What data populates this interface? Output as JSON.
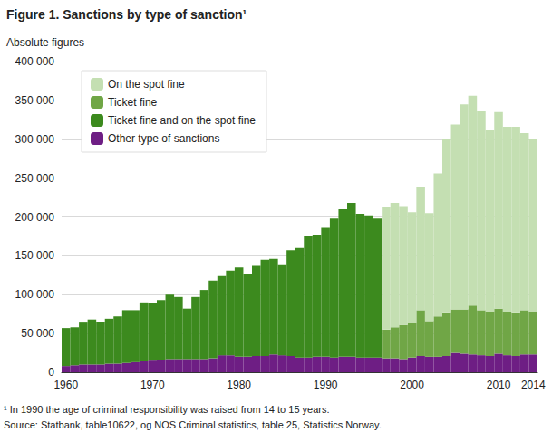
{
  "chart_data": {
    "type": "bar",
    "title": "Figure 1. Sanctions by type of sanction¹",
    "subtitle": "Absolute figures",
    "annotations": [
      "¹ In 1990 the age of criminal responsibility was raised from 14 to 15 years.",
      "Source: Statbank, table10622, og NOS Criminal statistics, table 25, Statistics Norway."
    ],
    "stacked": true,
    "grid": true,
    "legend": "top-left",
    "categories": [
      "1960",
      null,
      null,
      null,
      null,
      null,
      null,
      null,
      null,
      null,
      "1970",
      null,
      null,
      null,
      null,
      null,
      null,
      null,
      null,
      null,
      "1980",
      null,
      null,
      null,
      null,
      null,
      null,
      null,
      null,
      null,
      "1990",
      null,
      null,
      null,
      null,
      null,
      null,
      null,
      null,
      null,
      "2000",
      null,
      null,
      null,
      null,
      null,
      null,
      null,
      null,
      null,
      "2010",
      null,
      null,
      null,
      "2014"
    ],
    "ylim": [
      0,
      400000
    ],
    "yticks": [
      0,
      {
        "value": 50000,
        "label": "50 000"
      },
      {
        "value": 100000,
        "label": "100 000"
      },
      {
        "value": 150000,
        "label": "150 000"
      },
      {
        "value": 200000,
        "label": "200 000"
      },
      {
        "value": 250000,
        "label": "250 000"
      },
      {
        "value": 300000,
        "label": "300 000"
      },
      {
        "value": 350000,
        "label": "350 000"
      },
      {
        "value": 400000,
        "label": "400 000"
      }
    ],
    "series": [
      {
        "name": "On the spot fine",
        "color": "#c4dfb2",
        "values": [
          null,
          null,
          null,
          null,
          null,
          null,
          null,
          null,
          null,
          null,
          null,
          null,
          null,
          null,
          null,
          null,
          null,
          null,
          null,
          null,
          null,
          null,
          null,
          null,
          null,
          null,
          null,
          null,
          null,
          null,
          null,
          null,
          null,
          null,
          null,
          null,
          null,
          158000,
          160000,
          153000,
          143000,
          159000,
          139000,
          184000,
          224000,
          238000,
          264000,
          270000,
          257000,
          234000,
          253000,
          238000,
          240000,
          228000,
          224000
        ]
      },
      {
        "name": "Ticket fine",
        "color": "#70a646",
        "values": [
          null,
          null,
          null,
          null,
          null,
          null,
          null,
          null,
          null,
          null,
          null,
          null,
          null,
          null,
          null,
          null,
          null,
          null,
          null,
          null,
          null,
          null,
          null,
          null,
          null,
          null,
          null,
          null,
          null,
          null,
          null,
          null,
          null,
          null,
          null,
          null,
          null,
          37000,
          40000,
          44000,
          44000,
          59000,
          46000,
          52000,
          55000,
          56000,
          57000,
          63000,
          58000,
          57000,
          58000,
          56000,
          55000,
          57000,
          54000
        ]
      },
      {
        "name": "Ticket fine and on the spot fine",
        "color": "#3c8a1e",
        "values": [
          49000,
          49000,
          54000,
          58000,
          55000,
          58000,
          61000,
          68000,
          67000,
          76000,
          74000,
          77000,
          83000,
          80000,
          65000,
          80000,
          89000,
          100000,
          102000,
          109000,
          115000,
          106000,
          116000,
          124000,
          123000,
          116000,
          136000,
          141000,
          156000,
          157000,
          166000,
          179000,
          190000,
          198000,
          185000,
          183000,
          179000,
          null,
          null,
          null,
          null,
          null,
          null,
          null,
          null,
          null,
          null,
          null,
          null,
          null,
          null,
          null,
          null,
          null,
          null
        ]
      },
      {
        "name": "Other type of sanctions",
        "color": "#6e1e84",
        "values": [
          8000,
          9000,
          10000,
          10000,
          10000,
          11000,
          11000,
          12000,
          13000,
          14000,
          15000,
          16000,
          17000,
          17000,
          17000,
          17000,
          17000,
          18000,
          22000,
          22000,
          20000,
          20000,
          21000,
          21000,
          23000,
          22000,
          21000,
          19000,
          19000,
          20000,
          20000,
          19000,
          20000,
          20000,
          19000,
          19000,
          19000,
          18000,
          18000,
          17000,
          19000,
          21000,
          20000,
          20000,
          21000,
          25000,
          24000,
          23000,
          22000,
          21000,
          24000,
          22000,
          21000,
          23000,
          23000
        ]
      }
    ]
  }
}
